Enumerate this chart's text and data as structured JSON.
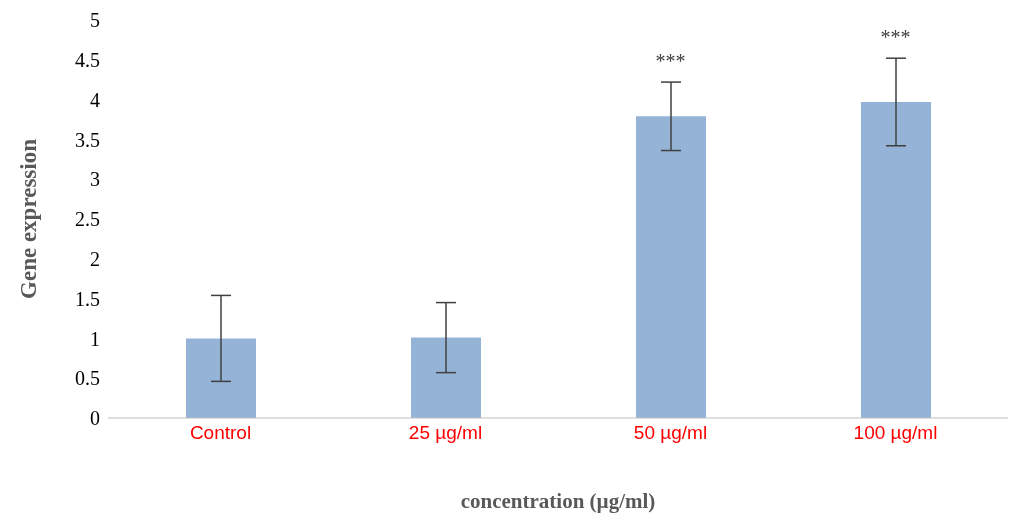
{
  "chart_data": {
    "type": "bar",
    "xlabel": "concentration (µg/ml)",
    "ylabel": "Gene expression",
    "categories": [
      "Control",
      "25 µg/ml",
      "50 µg/ml",
      "100 µg/ml"
    ],
    "values": [
      1.0,
      1.01,
      3.79,
      3.97
    ],
    "errors": [
      0.54,
      0.44,
      0.43,
      0.55
    ],
    "color": "#95b3d7",
    "ylim": [
      0,
      5
    ],
    "yticks": [
      0,
      0.5,
      1,
      1.5,
      2,
      2.5,
      3,
      3.5,
      4,
      4.5,
      5
    ],
    "grid": false,
    "annotations": [
      "***",
      "***"
    ]
  }
}
